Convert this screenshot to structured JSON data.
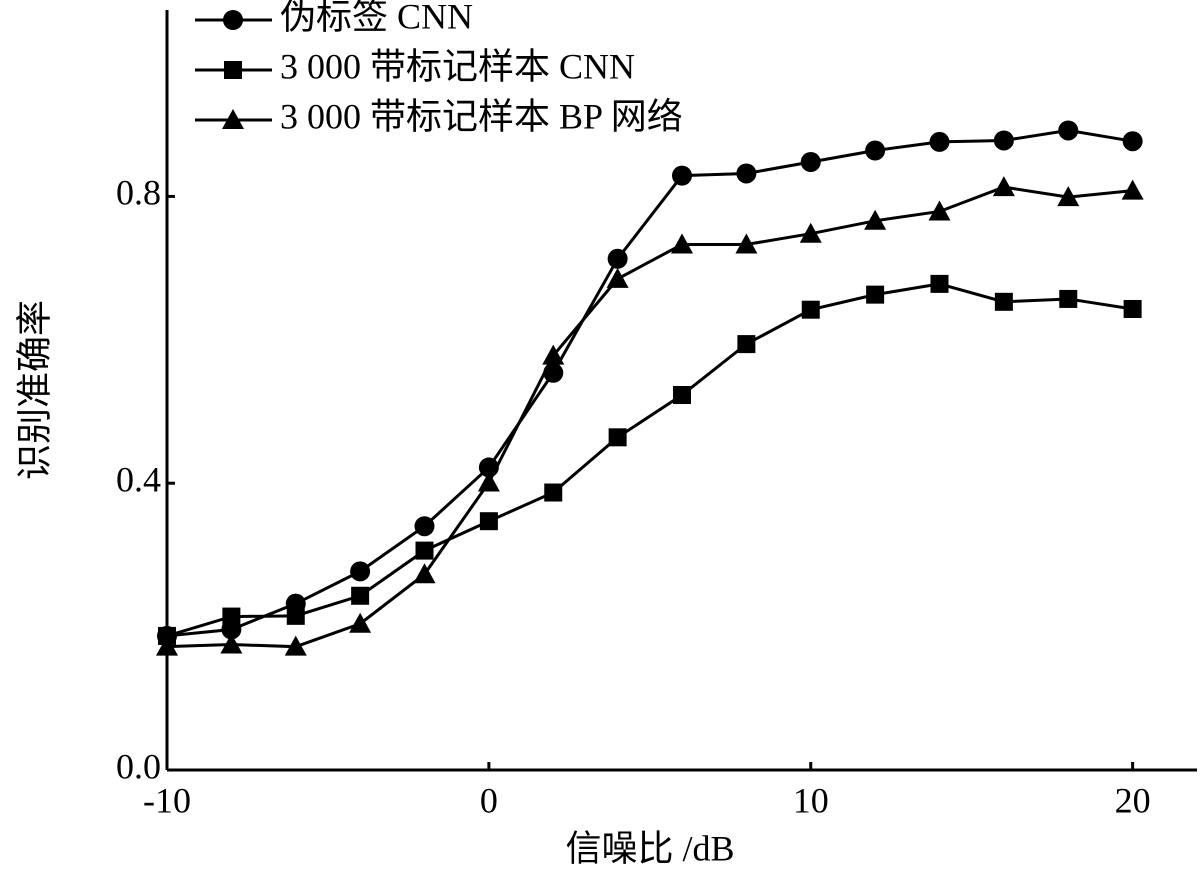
{
  "chart_data": {
    "type": "line",
    "x_label": "信噪比 /dB",
    "y_label": "识别准确率",
    "x": [
      -10,
      -8,
      -6,
      -4,
      -2,
      0,
      2,
      4,
      6,
      8,
      10,
      12,
      14,
      16,
      18,
      20
    ],
    "series": [
      {
        "name": "伪标签 CNN",
        "color": "#000000",
        "marker": "circle",
        "values": [
          0.187,
          0.196,
          0.232,
          0.277,
          0.34,
          0.422,
          0.554,
          0.713,
          0.829,
          0.832,
          0.848,
          0.864,
          0.876,
          0.878,
          0.892,
          0.877
        ]
      },
      {
        "name": "3 000 带标记样本 CNN",
        "color": "#000000",
        "marker": "square",
        "values": [
          0.187,
          0.214,
          0.215,
          0.243,
          0.306,
          0.347,
          0.387,
          0.464,
          0.523,
          0.594,
          0.642,
          0.663,
          0.678,
          0.653,
          0.657,
          0.643
        ]
      },
      {
        "name": "3 000 带标记样本 BP 网络",
        "color": "#000000",
        "marker": "triangle",
        "values": [
          0.172,
          0.175,
          0.172,
          0.204,
          0.273,
          0.401,
          0.578,
          0.685,
          0.733,
          0.733,
          0.748,
          0.766,
          0.779,
          0.813,
          0.799,
          0.808
        ]
      }
    ],
    "xlim": [
      -10,
      22
    ],
    "xticks": [
      -10,
      0,
      10,
      20
    ],
    "ylim": [
      0,
      1.06
    ],
    "yticks": [
      {
        "value": 0,
        "label": "0.0"
      },
      0.4,
      0.8
    ],
    "grid": false,
    "legend": "upper left"
  }
}
